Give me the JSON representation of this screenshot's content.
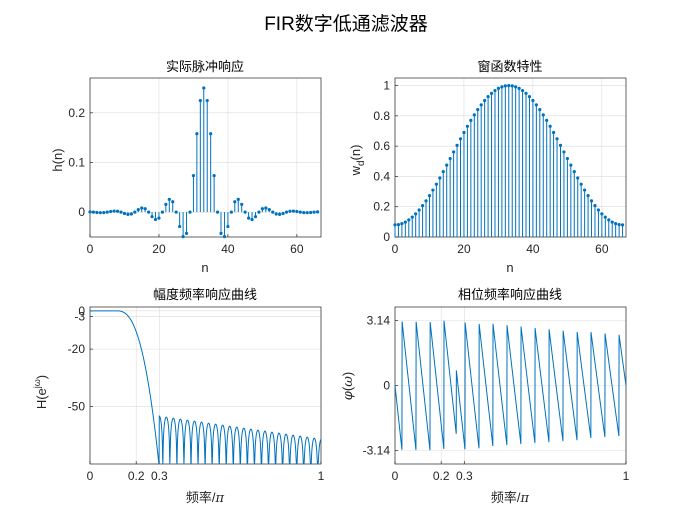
{
  "figure": {
    "title": "FIR数字低通滤波器"
  },
  "chart_data": [
    {
      "id": "impulse",
      "type": "stem",
      "title": "实际脉冲响应",
      "xlabel": "n",
      "ylabel": "h(n)",
      "xlim": [
        0,
        67
      ],
      "ylim": [
        -0.05,
        0.27
      ],
      "xticks": [
        0,
        20,
        40,
        60
      ],
      "yticks": [
        0,
        0.1,
        0.2
      ],
      "ytick_labels": [
        "0",
        "0.1",
        "0.2"
      ],
      "grid": true,
      "n_samples": 67,
      "center": 33,
      "cutoff_pi": 0.25,
      "window": "hamming"
    },
    {
      "id": "window",
      "type": "stem",
      "title": "窗函数特性",
      "xlabel": "n",
      "ylabel": "w_d(n)",
      "xlim": [
        0,
        67
      ],
      "ylim": [
        0,
        1.05
      ],
      "xticks": [
        0,
        20,
        40,
        60
      ],
      "yticks": [
        0,
        0.2,
        0.4,
        0.6,
        0.8,
        1
      ],
      "ytick_labels": [
        "0",
        "0.2",
        "0.4",
        "0.6",
        "0.8",
        "1"
      ],
      "grid": true,
      "n_samples": 67,
      "window": "hamming"
    },
    {
      "id": "magnitude",
      "type": "line",
      "title": "幅度频率响应曲线",
      "xlabel": "频率/π",
      "ylabel": "H(e^jω)",
      "xlim": [
        0,
        1
      ],
      "ylim": [
        -80,
        2
      ],
      "xticks": [
        0,
        0.2,
        0.3,
        1
      ],
      "xtick_labels": [
        "0",
        "0.2",
        "0.3",
        "1"
      ],
      "yticks": [
        0,
        -3,
        -20,
        -50
      ],
      "ytick_labels": [
        "0",
        "-3",
        "-20",
        "-50"
      ],
      "grid": true,
      "passband_edge": 0.2,
      "stopband_edge": 0.3,
      "passband_db": 0,
      "stopband_db": -53
    },
    {
      "id": "phase",
      "type": "line",
      "title": "相位频率响应曲线",
      "xlabel": "频率/π",
      "ylabel": "φ(ω)",
      "xlim": [
        0,
        1
      ],
      "ylim": [
        -3.8,
        3.8
      ],
      "xticks": [
        0,
        0.2,
        0.3,
        1
      ],
      "xtick_labels": [
        "0",
        "0.2",
        "0.3",
        "1"
      ],
      "yticks": [
        3.14,
        0,
        -3.14
      ],
      "ytick_labels": [
        "3.14",
        "0",
        "-3.14"
      ],
      "grid": true,
      "group_delay_samples": 33
    }
  ]
}
